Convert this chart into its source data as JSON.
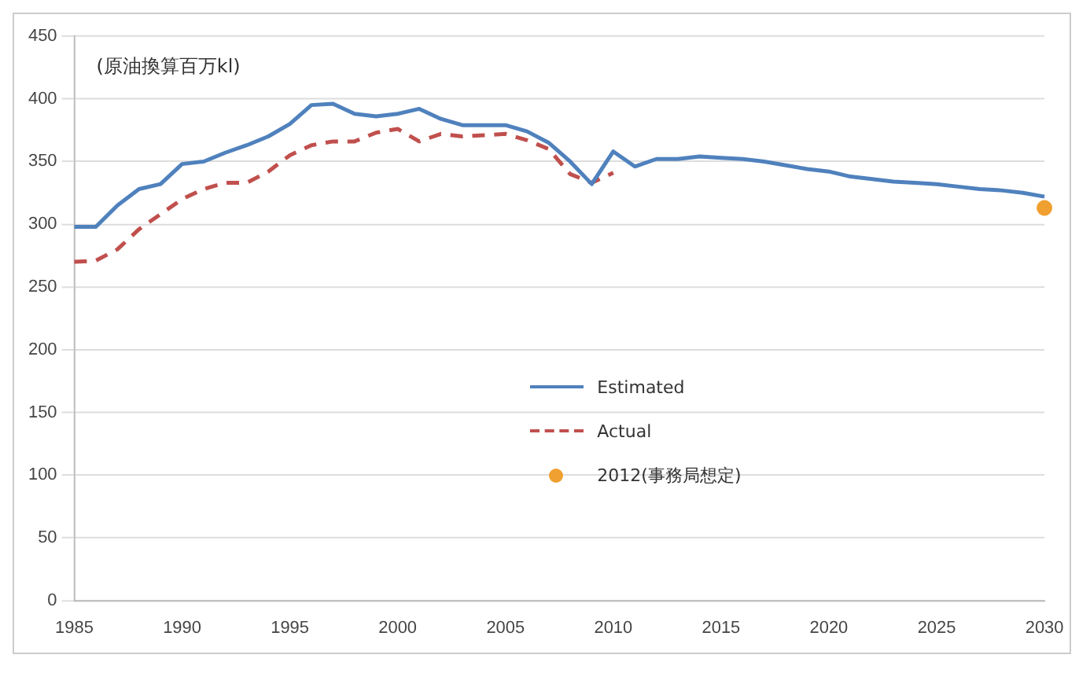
{
  "chart_data": {
    "type": "line",
    "annotations": [
      "(原油換算百万kl)"
    ],
    "xlim": [
      1985,
      2030
    ],
    "xticks": [
      1985,
      1990,
      1995,
      2000,
      2005,
      2010,
      2015,
      2020,
      2025,
      2030
    ],
    "ylim": [
      0,
      450
    ],
    "yticks": [
      0,
      50,
      100,
      150,
      200,
      250,
      300,
      350,
      400,
      450
    ],
    "grid": "y",
    "legend": "center",
    "marker": "none",
    "series": [
      {
        "name": "Estimated",
        "color": "#4f81bd",
        "line_style": "solid",
        "x": [
          1985,
          1986,
          1987,
          1988,
          1989,
          1990,
          1991,
          1992,
          1993,
          1994,
          1995,
          1996,
          1997,
          1998,
          1999,
          2000,
          2001,
          2002,
          2003,
          2004,
          2005,
          2006,
          2007,
          2008,
          2009,
          2010,
          2011,
          2012,
          2013,
          2014,
          2015,
          2016,
          2017,
          2018,
          2019,
          2020,
          2021,
          2022,
          2023,
          2024,
          2025,
          2026,
          2027,
          2028,
          2029,
          2030
        ],
        "values": [
          298,
          298,
          315,
          328,
          332,
          348,
          350,
          357,
          363,
          370,
          380,
          395,
          396,
          388,
          386,
          388,
          392,
          384,
          379,
          379,
          379,
          374,
          365,
          350,
          332,
          358,
          346,
          352,
          352,
          354,
          353,
          352,
          350,
          347,
          344,
          342,
          338,
          336,
          334,
          333,
          332,
          330,
          328,
          327,
          325,
          322
        ]
      },
      {
        "name": "Actual",
        "color": "#c0504d",
        "line_style": "dashed",
        "x": [
          1985,
          1986,
          1987,
          1988,
          1989,
          1990,
          1991,
          1992,
          1993,
          1994,
          1995,
          1996,
          1997,
          1998,
          1999,
          2000,
          2001,
          2002,
          2003,
          2004,
          2005,
          2006,
          2007,
          2008,
          2009,
          2010
        ],
        "values": [
          270,
          271,
          280,
          296,
          308,
          320,
          328,
          333,
          333,
          342,
          355,
          363,
          366,
          366,
          373,
          376,
          366,
          372,
          370,
          371,
          372,
          367,
          360,
          340,
          333,
          341
        ]
      },
      {
        "name": "2012(事務局想定)",
        "type": "scatter",
        "marker": "circle",
        "color": "#f0a030",
        "x": [
          2030
        ],
        "values": [
          313
        ]
      }
    ]
  }
}
